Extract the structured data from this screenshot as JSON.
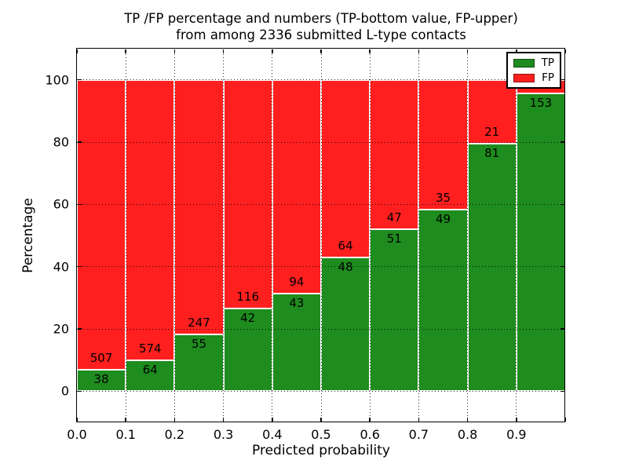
{
  "chart_data": {
    "type": "bar",
    "stacked": true,
    "title_line1": "TP /FP percentage and numbers (TP-bottom value, FP-upper)",
    "title_line2": "from among 2336 submitted L-type contacts",
    "xlabel": "Predicted probability",
    "ylabel": "Percentage",
    "x_tick_labels": [
      "0.0",
      "0.1",
      "0.2",
      "0.3",
      "0.4",
      "0.5",
      "0.6",
      "0.7",
      "0.8",
      "0.9"
    ],
    "y_tick_values": [
      0,
      20,
      40,
      60,
      80,
      100
    ],
    "xlim": [
      0.0,
      1.0
    ],
    "ylim": [
      -10,
      110
    ],
    "grid": true,
    "bin_edges": [
      0.0,
      0.1,
      0.2,
      0.3,
      0.4,
      0.5,
      0.6,
      0.7,
      0.8,
      0.9,
      1.0
    ],
    "series": [
      {
        "name": "TP",
        "color": "#1e8c1e",
        "counts": [
          38,
          64,
          55,
          42,
          43,
          48,
          51,
          49,
          81,
          153
        ]
      },
      {
        "name": "FP",
        "color": "#ff1f1f",
        "counts": [
          507,
          574,
          247,
          116,
          94,
          64,
          47,
          35,
          21,
          null
        ]
      }
    ],
    "tp_percent": [
      6.97,
      10.03,
      18.21,
      26.58,
      31.39,
      42.86,
      52.04,
      58.33,
      79.41,
      95.63
    ],
    "legend": {
      "position": "upper-right",
      "entries": [
        {
          "label": "TP",
          "color": "#1e8c1e"
        },
        {
          "label": "FP",
          "color": "#ff1f1f"
        }
      ]
    }
  }
}
